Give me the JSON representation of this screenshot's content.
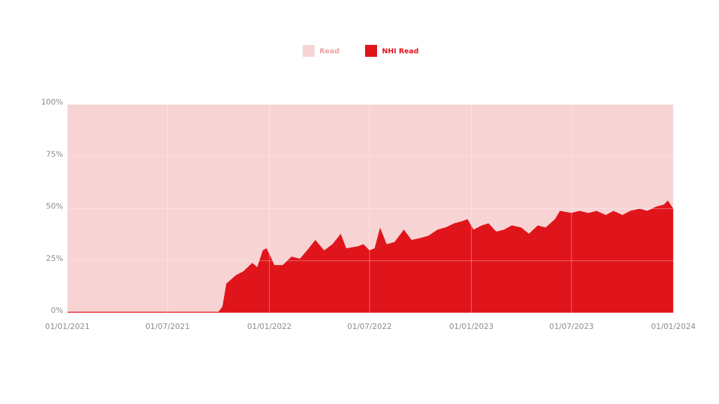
{
  "chart_data": {
    "type": "stacked_area",
    "x": [
      "01/01/2021",
      "01/07/2021",
      "01/10/2021",
      "08/10/2021",
      "15/10/2021",
      "01/11/2021",
      "15/11/2021",
      "01/12/2021",
      "10/12/2021",
      "20/12/2021",
      "27/12/2021",
      "05/01/2022",
      "10/01/2022",
      "25/01/2022",
      "10/02/2022",
      "25/02/2022",
      "10/03/2022",
      "25/03/2022",
      "10/04/2022",
      "25/04/2022",
      "10/05/2022",
      "20/05/2022",
      "10/06/2022",
      "20/06/2022",
      "01/07/2022",
      "10/07/2022",
      "20/07/2022",
      "01/08/2022",
      "15/08/2022",
      "01/09/2022",
      "15/09/2022",
      "01/10/2022",
      "15/10/2022",
      "01/11/2022",
      "15/11/2022",
      "01/12/2022",
      "15/12/2022",
      "25/12/2022",
      "05/01/2023",
      "20/01/2023",
      "01/02/2023",
      "15/02/2023",
      "01/03/2023",
      "15/03/2023",
      "01/04/2023",
      "15/04/2023",
      "01/05/2023",
      "15/05/2023",
      "01/06/2023",
      "10/06/2023",
      "01/07/2023",
      "15/07/2023",
      "01/08/2023",
      "15/08/2023",
      "01/09/2023",
      "15/09/2023",
      "01/10/2023",
      "15/10/2023",
      "01/11/2023",
      "15/11/2023",
      "01/12/2023",
      "15/12/2023",
      "22/12/2023",
      "01/01/2024"
    ],
    "series": [
      {
        "name": "Read",
        "color": "#f8d3d3",
        "values": [
          99.5,
          99.5,
          99.5,
          97,
          86,
          82,
          80,
          76,
          78,
          70,
          69,
          74,
          77,
          77,
          73,
          74,
          70,
          65,
          70,
          67,
          62,
          69,
          68,
          67,
          70,
          69,
          59,
          67,
          66,
          60,
          65,
          64,
          63,
          60,
          59,
          57,
          56,
          55,
          60,
          58,
          57,
          61,
          60,
          58,
          59,
          62,
          58,
          59,
          55,
          51,
          52,
          51,
          52,
          51,
          53,
          51,
          53,
          51,
          50,
          51,
          49,
          48,
          46,
          50
        ]
      },
      {
        "name": "NHI Read",
        "color": "#e0151b",
        "values": [
          0.5,
          0.5,
          0.5,
          3,
          14,
          18,
          20,
          24,
          22,
          30,
          31,
          26,
          23,
          23,
          27,
          26,
          30,
          35,
          30,
          33,
          38,
          31,
          32,
          33,
          30,
          31,
          41,
          33,
          34,
          40,
          35,
          36,
          37,
          40,
          41,
          43,
          44,
          45,
          40,
          42,
          43,
          39,
          40,
          42,
          41,
          38,
          42,
          41,
          45,
          49,
          48,
          49,
          48,
          49,
          47,
          49,
          47,
          49,
          50,
          49,
          51,
          52,
          54,
          50
        ]
      }
    ],
    "xlim": [
      "01/01/2021",
      "01/01/2024"
    ],
    "xticks": [
      "01/01/2021",
      "01/07/2021",
      "01/01/2022",
      "01/07/2022",
      "01/01/2023",
      "01/07/2023",
      "01/01/2024"
    ],
    "ylim": [
      0,
      100
    ],
    "yticks": [
      {
        "value": 0,
        "label": "0%"
      },
      {
        "value": 25,
        "label": "25%"
      },
      {
        "value": 50,
        "label": "50%"
      },
      {
        "value": 75,
        "label": "75%"
      },
      {
        "value": 100,
        "label": "100%"
      }
    ],
    "grid": true
  }
}
